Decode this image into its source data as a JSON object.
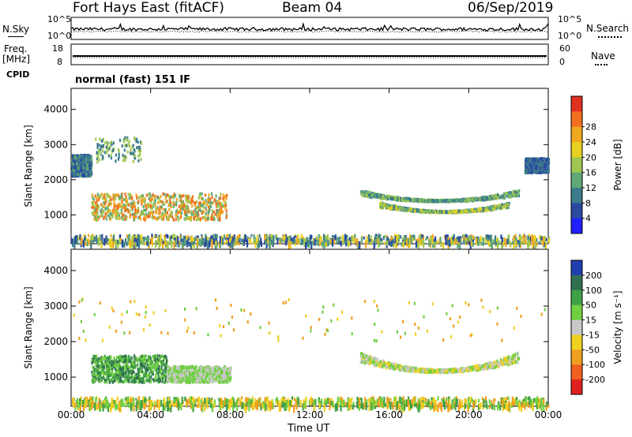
{
  "header": {
    "site": "Fort Hays East (fitACF)",
    "beam": "Beam 04",
    "date": "06/Sep/2019"
  },
  "side_labels": {
    "nsky": "N.Sky",
    "freq_line1": "Freq.",
    "freq_line2": "[MHz]",
    "cpid": "CPID",
    "nsearch": "N.Search",
    "nave": "Nave"
  },
  "cpid_text": "normal (fast) 151 IF",
  "time_label": "Time UT",
  "colors": {
    "axis": "#000000",
    "background": "#ffffff",
    "ground_scatter": "#c8c8c8"
  },
  "chart_data": [
    {
      "type": "line",
      "title": "N.Sky / N.Search",
      "ylabel_left": "N.Sky",
      "ylabel_right": "N.Search",
      "ytick_labels_left": [
        "10^5",
        "10^0"
      ],
      "ytick_labels_right": [
        "10^5",
        "10^0"
      ],
      "scale": "log",
      "xlim": [
        "00:00",
        "24:00"
      ],
      "series": [
        {
          "name": "N.Sky",
          "style": "solid",
          "level": 0.55,
          "noise": 0.08
        },
        {
          "name": "N.Search",
          "style": "dotted",
          "level": 0.4,
          "noise": 0.04
        }
      ]
    },
    {
      "type": "line",
      "title": "Frequency / Nave",
      "ylabel_left": "Freq. [MHz]",
      "ylabel_right": "Nave",
      "ytick_labels_left": [
        "18",
        "8"
      ],
      "ytick_labels_right": [
        "60",
        "0"
      ],
      "series": [
        {
          "name": "Freq.",
          "style": "solid",
          "value_mhz": 10.5
        },
        {
          "name": "Nave",
          "style": "dotted",
          "value": 13
        }
      ]
    },
    {
      "type": "heatmap",
      "title": "Power",
      "xlabel": "",
      "ylabel": "Slant Range [km]",
      "xlim": [
        0,
        24
      ],
      "ylim": [
        180,
        4600
      ],
      "x_ticks": [
        "00:00",
        "04:00",
        "08:00",
        "12:00",
        "16:00",
        "20:00",
        "00:00"
      ],
      "y_ticks": [
        1000,
        2000,
        3000,
        4000
      ],
      "colorbar_label": "Power [dB]",
      "colorbar_ticks": [
        "4",
        "8",
        "12",
        "16",
        "20",
        "24",
        "28"
      ],
      "colorbar_colors": [
        "#2020ff",
        "#2a4aa0",
        "#3c7c8c",
        "#60a878",
        "#a0c850",
        "#e8d020",
        "#f0a820",
        "#f07020",
        "#e03020"
      ],
      "regions": [
        {
          "name": "early-ionospheric",
          "t0": 0.0,
          "t1": 1.0,
          "r0": 2100,
          "r1": 2700,
          "values_db": [
            6,
            10,
            14
          ]
        },
        {
          "name": "morning-patch",
          "t0": 1.0,
          "t1": 7.8,
          "r0": 850,
          "r1": 1600,
          "values_db": [
            12,
            18,
            24,
            28
          ]
        },
        {
          "name": "high-scatter",
          "t0": 1.2,
          "t1": 3.5,
          "r0": 2500,
          "r1": 3200,
          "values_db": [
            10,
            16
          ]
        },
        {
          "name": "evening-arc-upper",
          "t0": 14.5,
          "t1": 22.5,
          "r0": 1300,
          "r1": 1700,
          "values_db": [
            8,
            12,
            16
          ]
        },
        {
          "name": "evening-arc-lower",
          "t0": 15.5,
          "t1": 22.0,
          "r0": 1000,
          "r1": 1350,
          "values_db": [
            8,
            12,
            16,
            20
          ]
        },
        {
          "name": "late-ionospheric",
          "t0": 22.8,
          "t1": 24.0,
          "r0": 2200,
          "r1": 2600,
          "values_db": [
            6,
            10
          ]
        },
        {
          "name": "near-range-clutter",
          "t0": 0.0,
          "t1": 24.0,
          "r0": 180,
          "r1": 420,
          "values_db": [
            4,
            8,
            12,
            16,
            20,
            24
          ]
        }
      ]
    },
    {
      "type": "heatmap",
      "title": "Velocity",
      "xlabel": "Time UT",
      "ylabel": "Slant Range [km]",
      "xlim": [
        0,
        24
      ],
      "ylim": [
        180,
        4600
      ],
      "x_ticks": [
        "00:00",
        "04:00",
        "08:00",
        "12:00",
        "16:00",
        "20:00",
        "00:00"
      ],
      "y_ticks": [
        1000,
        2000,
        3000,
        4000
      ],
      "colorbar_label": "Velocity [m s⁻¹]",
      "colorbar_ticks": [
        "200",
        "100",
        "50",
        "15",
        "-15",
        "-50",
        "-100",
        "-200"
      ],
      "colorbar_colors": [
        "#2040b0",
        "#307050",
        "#40a048",
        "#70d040",
        "#c8c8c8",
        "#f0d020",
        "#f0a020",
        "#f06020",
        "#e02020"
      ],
      "regions": [
        {
          "name": "morning-patch-velocity",
          "t0": 1.0,
          "t1": 4.8,
          "r0": 850,
          "r1": 1600,
          "values_ms": [
            50,
            100,
            15
          ]
        },
        {
          "name": "morning-gs",
          "t0": 4.8,
          "t1": 8.0,
          "r0": 850,
          "r1": 1300,
          "values_ms": [
            0,
            15
          ]
        },
        {
          "name": "evening-arc-velocity",
          "t0": 14.5,
          "t1": 22.5,
          "r0": 1000,
          "r1": 1700,
          "values_ms": [
            0,
            -15,
            15
          ]
        },
        {
          "name": "sparse-high",
          "t0": 0.0,
          "t1": 24.0,
          "r0": 2000,
          "r1": 3200,
          "values_ms": [
            -15,
            15,
            -50
          ]
        },
        {
          "name": "near-range-velocity",
          "t0": 0.0,
          "t1": 24.0,
          "r0": 180,
          "r1": 420,
          "values_ms": [
            15,
            -15,
            50,
            -50
          ]
        }
      ]
    }
  ]
}
